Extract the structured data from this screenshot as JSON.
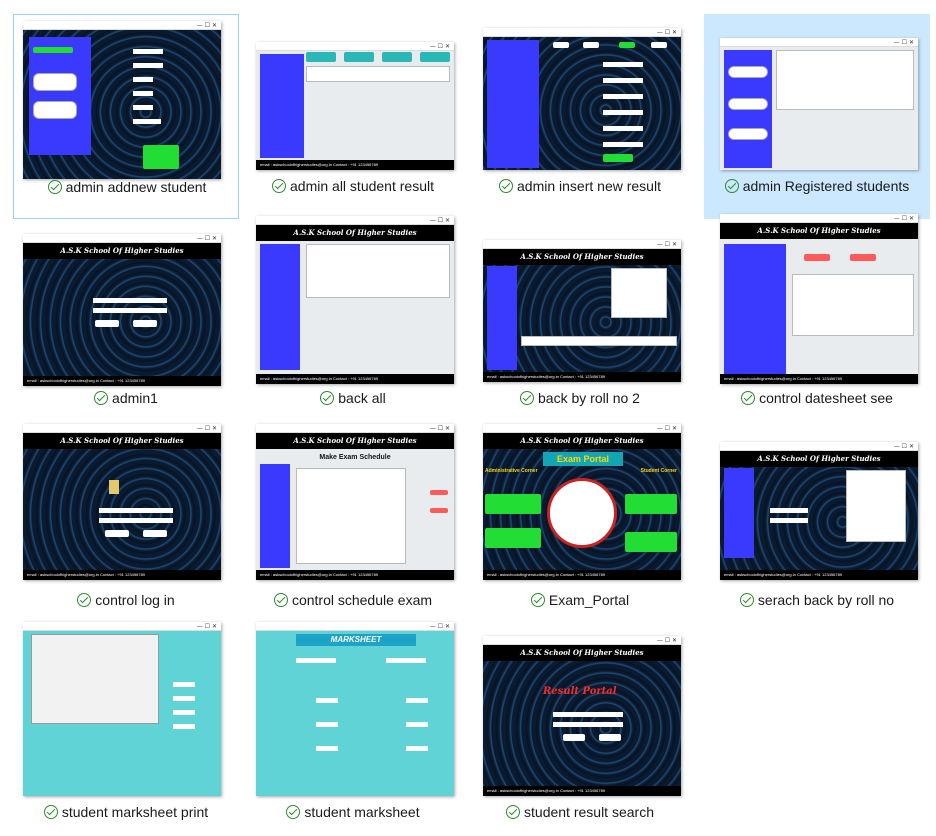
{
  "items": [
    {
      "caption": "admin addnew student",
      "selected": true
    },
    {
      "caption": "admin all student result",
      "selected": false
    },
    {
      "caption": "admin insert new result",
      "selected": false
    },
    {
      "caption": "admin Registered students",
      "selected": true
    },
    {
      "caption": "admin1",
      "selected": false
    },
    {
      "caption": "back all",
      "selected": false
    },
    {
      "caption": "back by roll no 2",
      "selected": false
    },
    {
      "caption": "control datesheet see",
      "selected": false
    },
    {
      "caption": "control log in",
      "selected": false
    },
    {
      "caption": "control schedule exam",
      "selected": false
    },
    {
      "caption": "Exam_Portal",
      "selected": false
    },
    {
      "caption": "serach back by roll no",
      "selected": false
    },
    {
      "caption": "student marksheet print",
      "selected": false
    },
    {
      "caption": "student marksheet",
      "selected": false
    },
    {
      "caption": "student result search",
      "selected": false
    }
  ],
  "thumb_text": {
    "school_title": "A.S.K School Of Higher Studies",
    "exam_portal": "Exam Portal",
    "admin_corner": "Administrative Corner",
    "student_corner": "Student Corner",
    "make_schedule": "Make Exam Schedule",
    "marksheet": "MARKSHEET",
    "result_portal": "Result Portal",
    "footer": "email : askschoolofhigherstudies@org.in     Contact : +91 123456789",
    "win_controls": "—  ☐  ✕"
  },
  "colors": {
    "panel_blue": "#3a3aff",
    "button_green": "#22dd33",
    "selection_bg": "#cce8ff",
    "selection_border": "#99d1ff",
    "check_green": "#2e8b2e"
  }
}
